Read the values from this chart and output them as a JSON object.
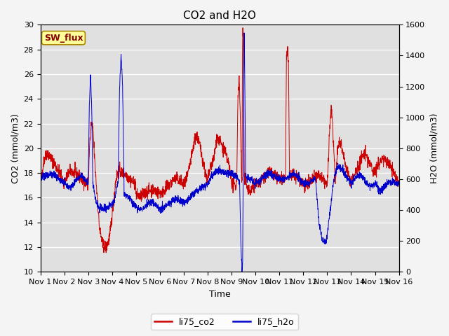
{
  "title": "CO2 and H2O",
  "xlabel": "Time",
  "ylabel_left": "CO2 (mmol/m3)",
  "ylabel_right": "H2O (mmol/m3)",
  "ylim_left": [
    10,
    30
  ],
  "ylim_right": [
    0,
    1600
  ],
  "yticks_left": [
    10,
    12,
    14,
    16,
    18,
    20,
    22,
    24,
    26,
    28,
    30
  ],
  "yticks_right": [
    0,
    200,
    400,
    600,
    800,
    1000,
    1200,
    1400,
    1600
  ],
  "xtick_labels": [
    "Nov 1",
    "Nov 2",
    "Nov 3",
    "Nov 4",
    "Nov 5",
    "Nov 6",
    "Nov 7",
    "Nov 8",
    "Nov 9",
    "Nov 10",
    "Nov 11",
    "Nov 12",
    "Nov 13",
    "Nov 14",
    "Nov 15",
    "Nov 16"
  ],
  "color_co2": "#cc0000",
  "color_h2o": "#0000cc",
  "bg_color": "#e0e0e0",
  "fig_bg_color": "#f4f4f4",
  "grid_color": "#ffffff",
  "legend_label_co2": "li75_co2",
  "legend_label_h2o": "li75_h2o",
  "sw_flux_label": "SW_flux",
  "sw_flux_bg": "#ffff99",
  "sw_flux_border": "#aa8800",
  "sw_flux_text_color": "#880000",
  "title_fontsize": 11,
  "axis_label_fontsize": 9,
  "tick_fontsize": 8,
  "legend_fontsize": 9,
  "linewidth": 0.7
}
